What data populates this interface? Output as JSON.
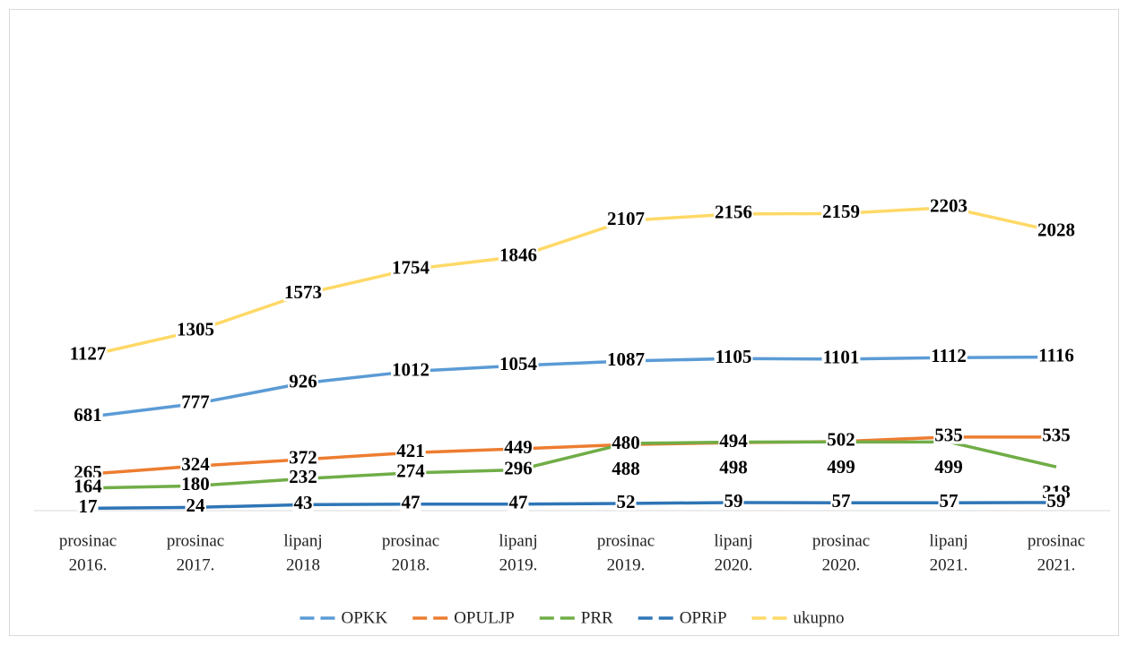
{
  "chart_data": {
    "type": "line",
    "categories": [
      [
        "prosinac",
        "2016."
      ],
      [
        "prosinac",
        "2017."
      ],
      [
        "lipanj",
        "2018"
      ],
      [
        "prosinac",
        "2018."
      ],
      [
        "lipanj",
        "2019."
      ],
      [
        "prosinac",
        "2019."
      ],
      [
        "lipanj",
        "2020."
      ],
      [
        "prosinac",
        "2020."
      ],
      [
        "lipanj",
        "2021."
      ],
      [
        "prosinac",
        "2021."
      ]
    ],
    "series": [
      {
        "name": "OPKK",
        "color": "#5b9bd5",
        "values": [
          681,
          777,
          926,
          1012,
          1054,
          1087,
          1105,
          1101,
          1112,
          1116
        ]
      },
      {
        "name": "OPULJP",
        "color": "#ed7d31",
        "values": [
          265,
          324,
          372,
          421,
          449,
          480,
          494,
          502,
          535,
          535
        ]
      },
      {
        "name": "PRR",
        "color": "#70ad47",
        "values": [
          164,
          180,
          232,
          274,
          296,
          488,
          498,
          499,
          499,
          318
        ]
      },
      {
        "name": "OPRiP",
        "color": "#2e75b6",
        "values": [
          17,
          24,
          43,
          47,
          47,
          52,
          59,
          57,
          57,
          59
        ]
      },
      {
        "name": "ukupno",
        "color": "#ffd966",
        "values": [
          1127,
          1305,
          1573,
          1754,
          1846,
          2107,
          2156,
          2159,
          2203,
          2028
        ]
      }
    ],
    "ylim": [
      0,
      2500
    ],
    "legend": "bottom"
  }
}
